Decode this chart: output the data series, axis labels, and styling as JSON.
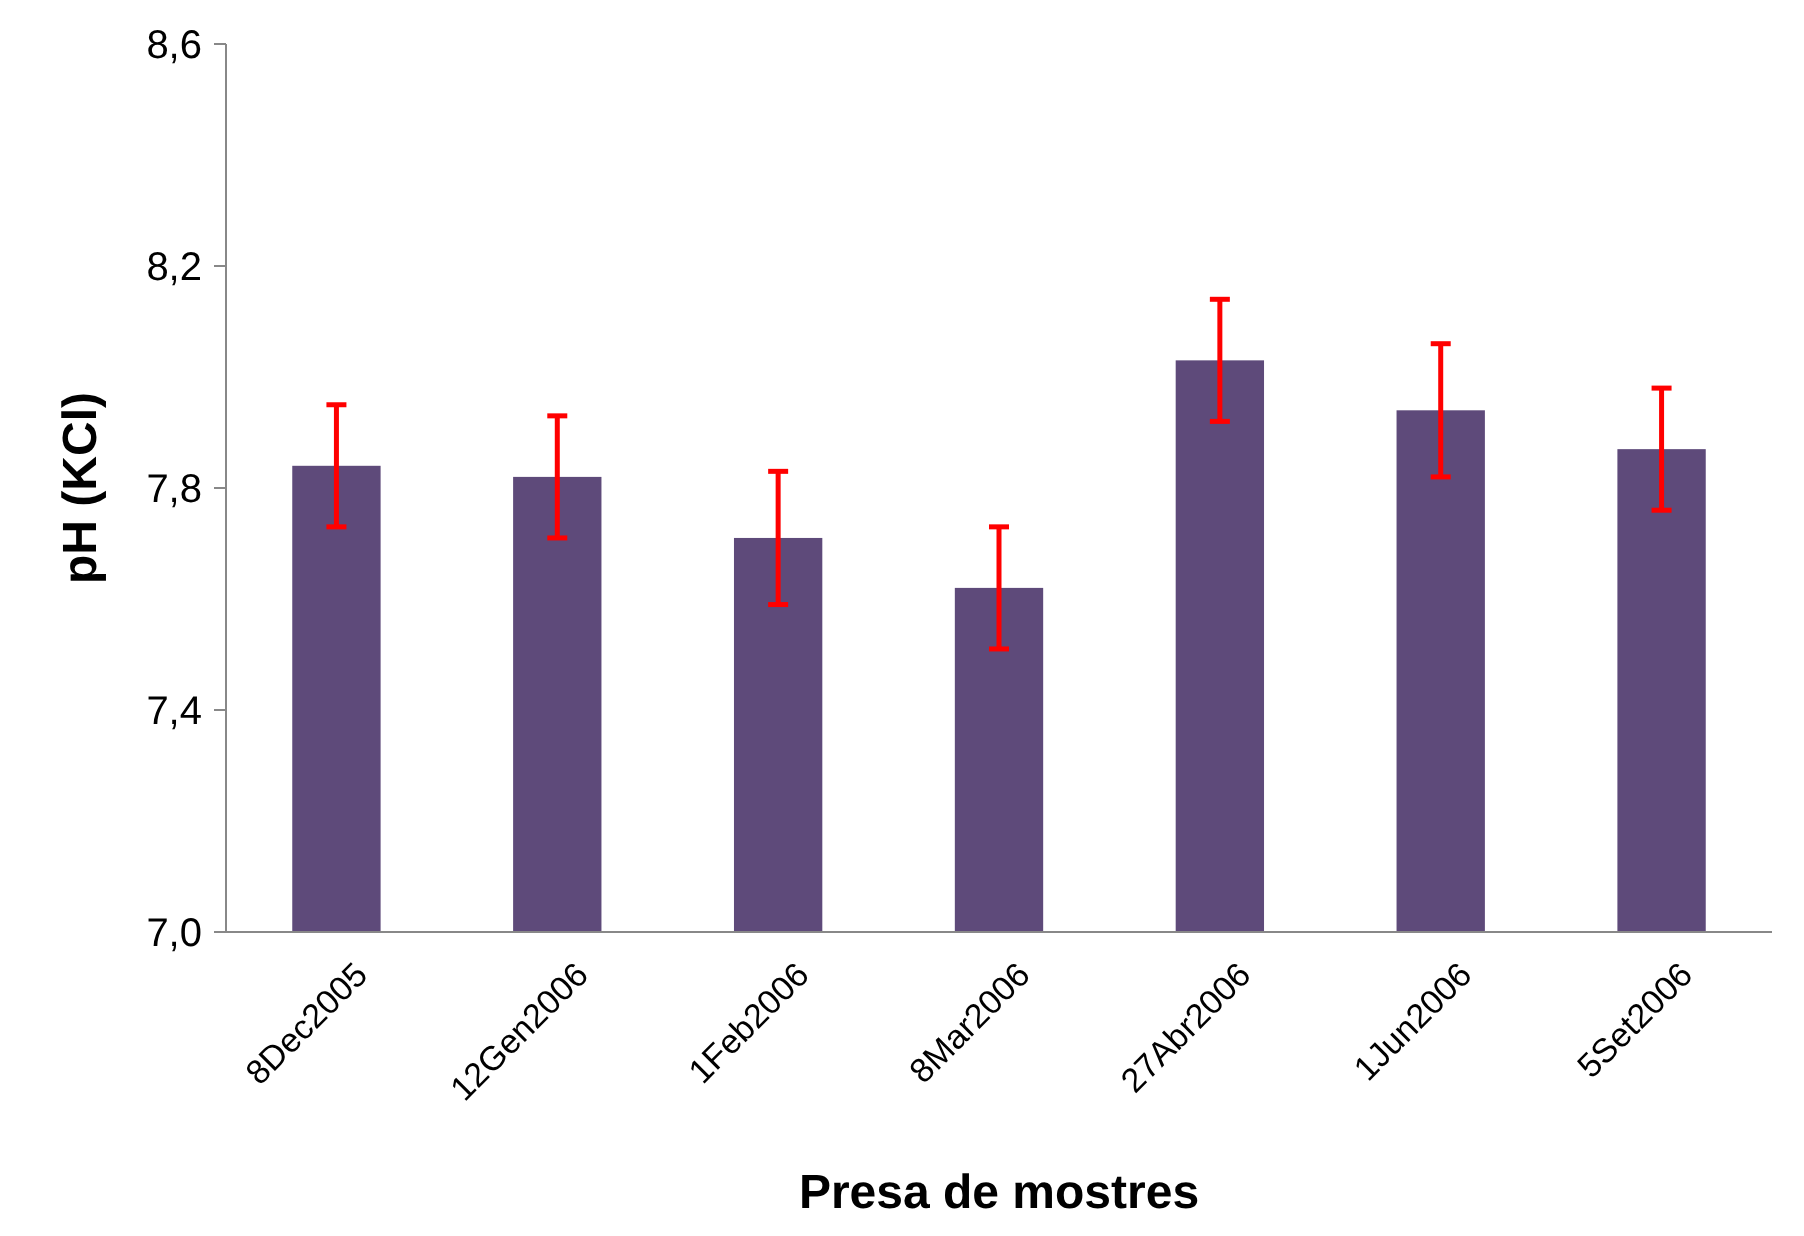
{
  "chart_data": {
    "type": "bar",
    "xlabel": "Presa de mostres",
    "ylabel": "pH (KCl)",
    "categories": [
      "8Dec2005",
      "12Gen2006",
      "1Feb2006",
      "8Mar2006",
      "27Abr2006",
      "1Jun2006",
      "5Set2006"
    ],
    "values": [
      7.84,
      7.82,
      7.71,
      7.62,
      8.03,
      7.94,
      7.87
    ],
    "errors": [
      0.11,
      0.11,
      0.12,
      0.11,
      0.11,
      0.12,
      0.11
    ],
    "color": "#5e4a7a",
    "ylim": [
      7.0,
      8.6
    ],
    "yticks": [
      {
        "value": 7.0,
        "label": "7,0"
      },
      {
        "value": 7.4,
        "label": "7,4"
      },
      {
        "value": 7.8,
        "label": "7,8"
      },
      {
        "value": 8.2,
        "label": "8,2"
      },
      {
        "value": 8.6,
        "label": "8,6"
      }
    ],
    "grid": false
  }
}
